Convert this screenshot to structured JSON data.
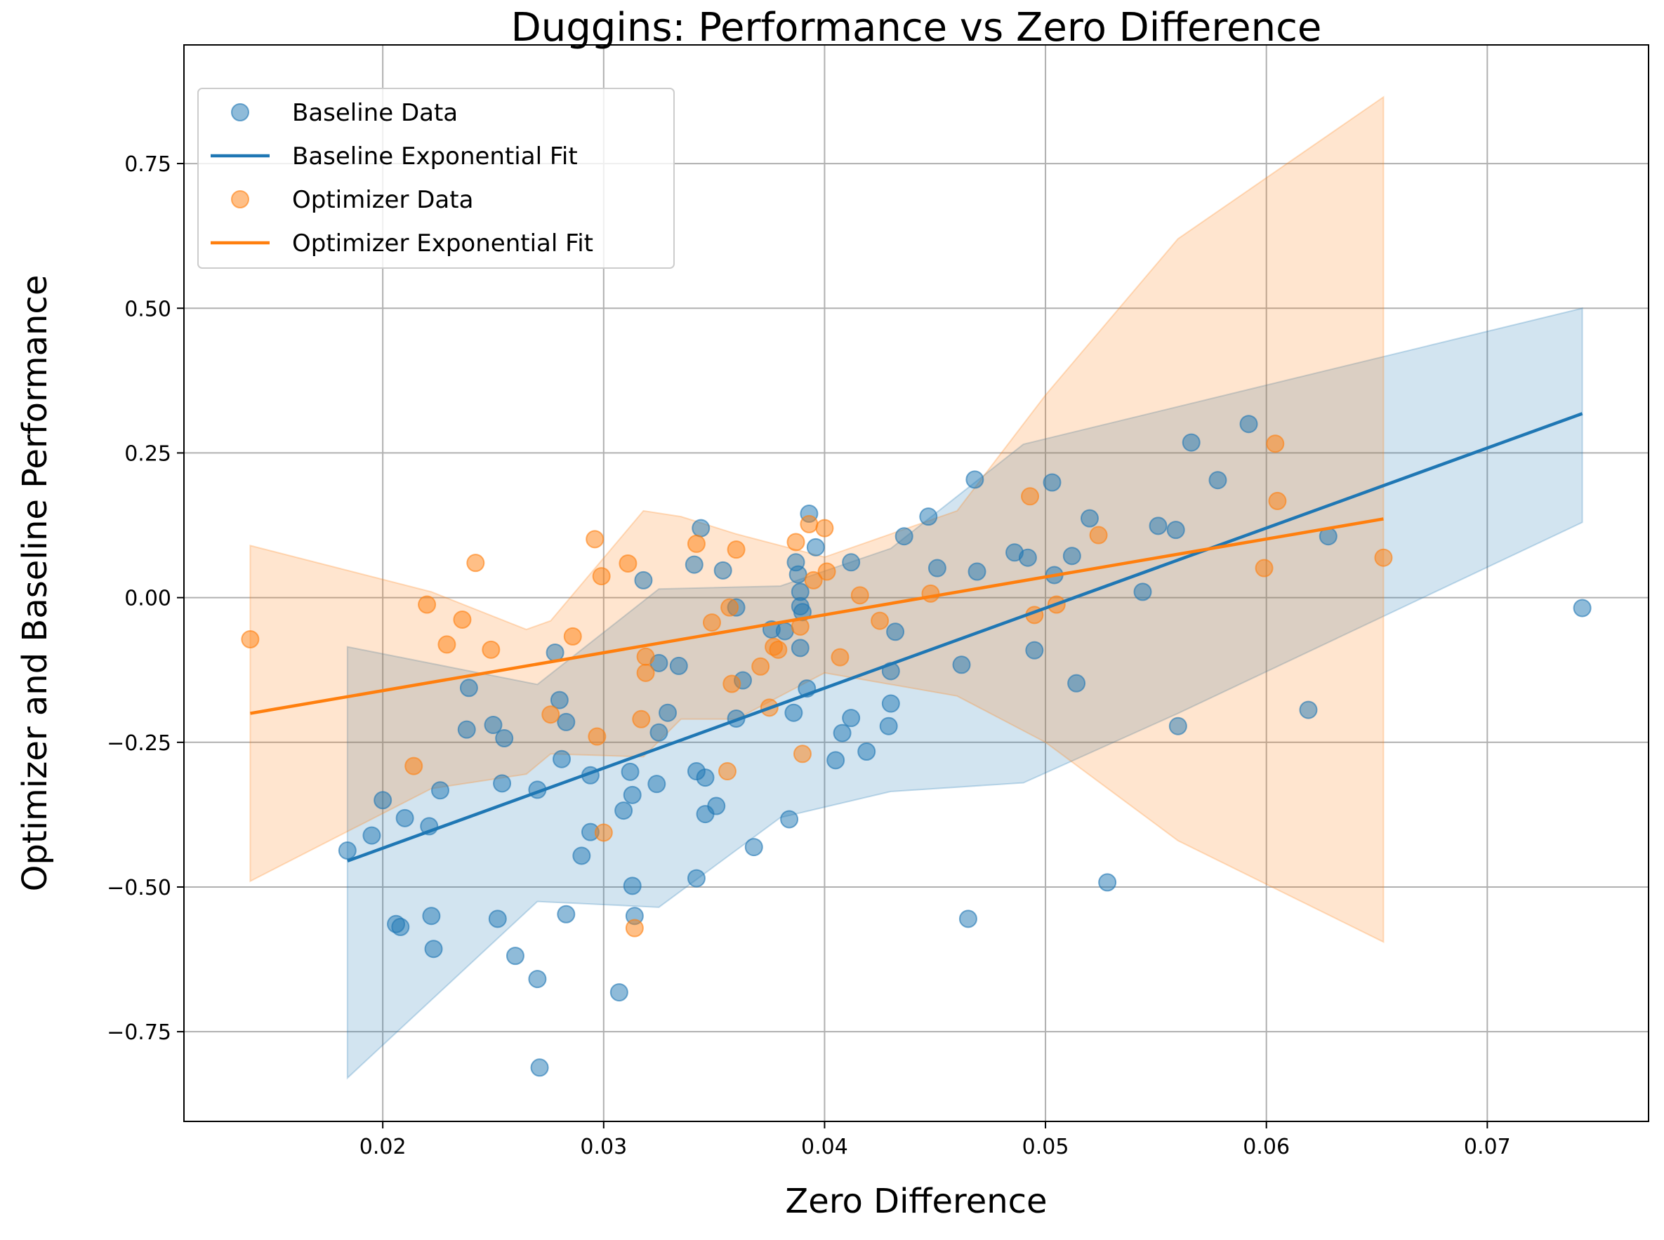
{
  "chart_data": {
    "type": "scatter",
    "title": "Duggins: Performance vs Zero Difference",
    "xlabel": "Zero Difference",
    "ylabel": "Optimizer and Baseline Performance",
    "xlim": [
      0.011,
      0.0773
    ],
    "ylim": [
      -0.905,
      0.955
    ],
    "grid": true,
    "legend_position": "top-left",
    "x_ticks": [
      {
        "value": 0.02,
        "label": "0.02"
      },
      {
        "value": 0.03,
        "label": "0.03"
      },
      {
        "value": 0.04,
        "label": "0.04"
      },
      {
        "value": 0.05,
        "label": "0.05"
      },
      {
        "value": 0.06,
        "label": "0.06"
      },
      {
        "value": 0.07,
        "label": "0.07"
      }
    ],
    "y_ticks": [
      {
        "value": -0.75,
        "label": "−0.75"
      },
      {
        "value": -0.5,
        "label": "−0.50"
      },
      {
        "value": -0.25,
        "label": "−0.25"
      },
      {
        "value": 0.0,
        "label": "0.00"
      },
      {
        "value": 0.25,
        "label": "0.25"
      },
      {
        "value": 0.5,
        "label": "0.50"
      },
      {
        "value": 0.75,
        "label": "0.75"
      }
    ],
    "legend": [
      {
        "label": "Baseline Data",
        "kind": "marker",
        "color": "#1f77b4"
      },
      {
        "label": "Baseline Exponential Fit",
        "kind": "line",
        "color": "#1f77b4"
      },
      {
        "label": "Optimizer Data",
        "kind": "marker",
        "color": "#ff7f0e"
      },
      {
        "label": "Optimizer Exponential Fit",
        "kind": "line",
        "color": "#ff7f0e"
      }
    ],
    "series": [
      {
        "name": "Baseline Data",
        "color": "#1f77b4",
        "fit": {
          "x0": 0.0184,
          "y0": -0.455,
          "x1": 0.0743,
          "y1": 0.318
        },
        "band": {
          "upper": [
            [
              0.0184,
              -0.085
            ],
            [
              0.027,
              -0.15
            ],
            [
              0.0325,
              0.015
            ],
            [
              0.038,
              0.02
            ],
            [
              0.043,
              0.085
            ],
            [
              0.049,
              0.265
            ],
            [
              0.056,
              0.33
            ],
            [
              0.0743,
              0.5
            ]
          ],
          "lower": [
            [
              0.0184,
              -0.83
            ],
            [
              0.027,
              -0.525
            ],
            [
              0.0325,
              -0.535
            ],
            [
              0.038,
              -0.38
            ],
            [
              0.043,
              -0.335
            ],
            [
              0.049,
              -0.32
            ],
            [
              0.056,
              -0.2
            ],
            [
              0.0743,
              0.13
            ]
          ]
        },
        "points": [
          [
            0.0184,
            -0.437
          ],
          [
            0.0195,
            -0.411
          ],
          [
            0.02,
            -0.35
          ],
          [
            0.0206,
            -0.564
          ],
          [
            0.0208,
            -0.569
          ],
          [
            0.021,
            -0.381
          ],
          [
            0.0221,
            -0.395
          ],
          [
            0.0222,
            -0.55
          ],
          [
            0.0223,
            -0.607
          ],
          [
            0.0226,
            -0.333
          ],
          [
            0.0238,
            -0.228
          ],
          [
            0.0239,
            -0.156
          ],
          [
            0.025,
            -0.22
          ],
          [
            0.0252,
            -0.555
          ],
          [
            0.0254,
            -0.321
          ],
          [
            0.0255,
            -0.243
          ],
          [
            0.026,
            -0.619
          ],
          [
            0.027,
            -0.332
          ],
          [
            0.027,
            -0.659
          ],
          [
            0.0271,
            -0.812
          ],
          [
            0.0278,
            -0.095
          ],
          [
            0.028,
            -0.177
          ],
          [
            0.0281,
            -0.279
          ],
          [
            0.0283,
            -0.215
          ],
          [
            0.0283,
            -0.547
          ],
          [
            0.029,
            -0.446
          ],
          [
            0.0294,
            -0.307
          ],
          [
            0.0294,
            -0.405
          ],
          [
            0.0307,
            -0.682
          ],
          [
            0.0309,
            -0.368
          ],
          [
            0.0312,
            -0.301
          ],
          [
            0.0313,
            -0.341
          ],
          [
            0.0313,
            -0.498
          ],
          [
            0.0314,
            -0.55
          ],
          [
            0.0318,
            0.03
          ],
          [
            0.0324,
            -0.322
          ],
          [
            0.0325,
            -0.113
          ],
          [
            0.0325,
            -0.233
          ],
          [
            0.0329,
            -0.199
          ],
          [
            0.0334,
            -0.118
          ],
          [
            0.0341,
            0.057
          ],
          [
            0.0342,
            -0.3
          ],
          [
            0.0342,
            -0.485
          ],
          [
            0.0344,
            0.12
          ],
          [
            0.0346,
            -0.311
          ],
          [
            0.0346,
            -0.374
          ],
          [
            0.0351,
            -0.36
          ],
          [
            0.0354,
            0.047
          ],
          [
            0.036,
            -0.017
          ],
          [
            0.036,
            -0.209
          ],
          [
            0.0363,
            -0.143
          ],
          [
            0.0368,
            -0.431
          ],
          [
            0.0376,
            -0.055
          ],
          [
            0.0382,
            -0.058
          ],
          [
            0.0384,
            -0.383
          ],
          [
            0.0386,
            -0.199
          ],
          [
            0.0387,
            0.061
          ],
          [
            0.0388,
            0.04
          ],
          [
            0.0389,
            -0.087
          ],
          [
            0.0389,
            0.01
          ],
          [
            0.0389,
            -0.015
          ],
          [
            0.039,
            -0.025
          ],
          [
            0.0392,
            -0.157
          ],
          [
            0.0393,
            0.145
          ],
          [
            0.0396,
            0.087
          ],
          [
            0.0405,
            -0.281
          ],
          [
            0.0408,
            -0.234
          ],
          [
            0.0412,
            -0.208
          ],
          [
            0.0412,
            0.061
          ],
          [
            0.0419,
            -0.266
          ],
          [
            0.0429,
            -0.222
          ],
          [
            0.043,
            -0.127
          ],
          [
            0.043,
            -0.183
          ],
          [
            0.0432,
            -0.059
          ],
          [
            0.0436,
            0.106
          ],
          [
            0.0447,
            0.14
          ],
          [
            0.0451,
            0.051
          ],
          [
            0.0462,
            -0.116
          ],
          [
            0.0465,
            -0.555
          ],
          [
            0.0468,
            0.204
          ],
          [
            0.0469,
            0.045
          ],
          [
            0.0486,
            0.078
          ],
          [
            0.0492,
            0.069
          ],
          [
            0.0495,
            -0.091
          ],
          [
            0.0503,
            0.199
          ],
          [
            0.0504,
            0.039
          ],
          [
            0.0512,
            0.072
          ],
          [
            0.0514,
            -0.148
          ],
          [
            0.052,
            0.137
          ],
          [
            0.0528,
            -0.492
          ],
          [
            0.0544,
            0.01
          ],
          [
            0.0551,
            0.124
          ],
          [
            0.0559,
            0.117
          ],
          [
            0.056,
            -0.222
          ],
          [
            0.0566,
            0.268
          ],
          [
            0.0578,
            0.203
          ],
          [
            0.0592,
            0.3
          ],
          [
            0.0619,
            -0.194
          ],
          [
            0.0628,
            0.106
          ],
          [
            0.0743,
            -0.018
          ]
        ]
      },
      {
        "name": "Optimizer Data",
        "color": "#ff7f0e",
        "fit": {
          "x0": 0.014,
          "y0": -0.2,
          "x1": 0.0653,
          "y1": 0.136
        },
        "band": {
          "upper": [
            [
              0.014,
              0.09
            ],
            [
              0.0222,
              0.01
            ],
            [
              0.0265,
              -0.055
            ],
            [
              0.0276,
              -0.04
            ],
            [
              0.0318,
              0.15
            ],
            [
              0.0335,
              0.14
            ],
            [
              0.036,
              0.11
            ],
            [
              0.04,
              0.07
            ],
            [
              0.046,
              0.15
            ],
            [
              0.05,
              0.35
            ],
            [
              0.056,
              0.62
            ],
            [
              0.0653,
              0.865
            ]
          ],
          "lower": [
            [
              0.014,
              -0.49
            ],
            [
              0.0222,
              -0.33
            ],
            [
              0.0265,
              -0.305
            ],
            [
              0.0276,
              -0.27
            ],
            [
              0.0318,
              -0.275
            ],
            [
              0.0335,
              -0.21
            ],
            [
              0.036,
              -0.21
            ],
            [
              0.04,
              -0.13
            ],
            [
              0.046,
              -0.17
            ],
            [
              0.05,
              -0.25
            ],
            [
              0.056,
              -0.42
            ],
            [
              0.0653,
              -0.595
            ]
          ]
        },
        "points": [
          [
            0.014,
            -0.072
          ],
          [
            0.0214,
            -0.291
          ],
          [
            0.022,
            -0.012
          ],
          [
            0.0229,
            -0.081
          ],
          [
            0.0236,
            -0.038
          ],
          [
            0.0242,
            0.06
          ],
          [
            0.0249,
            -0.09
          ],
          [
            0.0276,
            -0.202
          ],
          [
            0.0286,
            -0.067
          ],
          [
            0.0296,
            0.101
          ],
          [
            0.0297,
            -0.24
          ],
          [
            0.0299,
            0.037
          ],
          [
            0.03,
            -0.406
          ],
          [
            0.0311,
            0.059
          ],
          [
            0.0314,
            -0.571
          ],
          [
            0.0317,
            -0.21
          ],
          [
            0.0319,
            -0.102
          ],
          [
            0.0319,
            -0.13
          ],
          [
            0.0342,
            0.093
          ],
          [
            0.0349,
            -0.043
          ],
          [
            0.0356,
            -0.3
          ],
          [
            0.0357,
            -0.017
          ],
          [
            0.0358,
            -0.149
          ],
          [
            0.036,
            0.083
          ],
          [
            0.0371,
            -0.119
          ],
          [
            0.0375,
            -0.19
          ],
          [
            0.0377,
            -0.085
          ],
          [
            0.0379,
            -0.09
          ],
          [
            0.0387,
            0.096
          ],
          [
            0.0389,
            -0.05
          ],
          [
            0.039,
            -0.27
          ],
          [
            0.0393,
            0.127
          ],
          [
            0.0395,
            0.03
          ],
          [
            0.04,
            0.12
          ],
          [
            0.0401,
            0.045
          ],
          [
            0.0407,
            -0.103
          ],
          [
            0.0416,
            0.004
          ],
          [
            0.0425,
            -0.04
          ],
          [
            0.0448,
            0.007
          ],
          [
            0.0493,
            0.175
          ],
          [
            0.0495,
            -0.03
          ],
          [
            0.0505,
            -0.012
          ],
          [
            0.0524,
            0.108
          ],
          [
            0.0599,
            0.051
          ],
          [
            0.0604,
            0.266
          ],
          [
            0.0605,
            0.167
          ],
          [
            0.0653,
            0.069
          ]
        ]
      }
    ]
  }
}
